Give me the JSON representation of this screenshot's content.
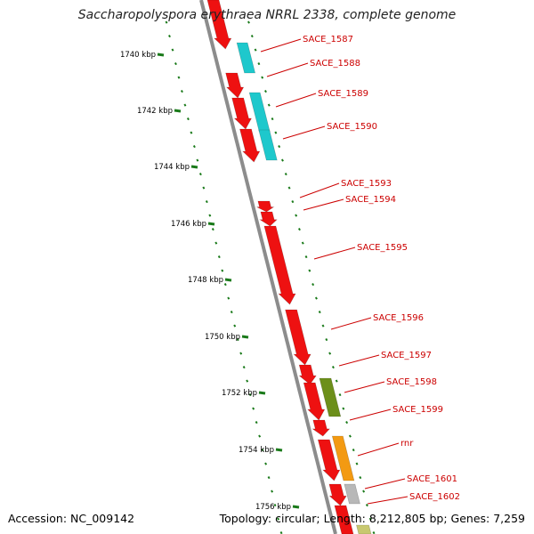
{
  "header": {
    "title": "Saccharopolyspora erythraea NRRL 2338, complete genome"
  },
  "footer": {
    "accession": "Accession: NC_009142",
    "summary": "Topology: circular; Length: 8,212,805 bp; Genes: 7,259"
  },
  "colors": {
    "forward_cds": "#ee1111",
    "reverse_cds": "#1ec8cc",
    "other_a": "#6c8f1a",
    "other_b": "#f39a12",
    "other_c": "#b8b8b8",
    "backbone": "#8c8c8c",
    "ticks": "#1a7a1a",
    "label": "#cc0000"
  },
  "scale": {
    "unit": "kbp",
    "ticks": [
      {
        "value": 1740,
        "label": "1740 kbp"
      },
      {
        "value": 1742,
        "label": "1742 kbp"
      },
      {
        "value": 1744,
        "label": "1744 kbp"
      },
      {
        "value": 1746,
        "label": "1746 kbp"
      },
      {
        "value": 1748,
        "label": "1748 kbp"
      },
      {
        "value": 1750,
        "label": "1750 kbp"
      },
      {
        "value": 1752,
        "label": "1752 kbp"
      },
      {
        "value": 1754,
        "label": "1754 kbp"
      },
      {
        "value": 1756,
        "label": "1756 kbp"
      }
    ]
  },
  "genes": [
    {
      "name": "SACE_1587"
    },
    {
      "name": "SACE_1588"
    },
    {
      "name": "SACE_1589"
    },
    {
      "name": "SACE_1590"
    },
    {
      "name": "SACE_1593"
    },
    {
      "name": "SACE_1594"
    },
    {
      "name": "SACE_1595"
    },
    {
      "name": "SACE_1596"
    },
    {
      "name": "SACE_1597"
    },
    {
      "name": "SACE_1598"
    },
    {
      "name": "SACE_1599"
    },
    {
      "name": "rnr"
    },
    {
      "name": "SACE_1601"
    },
    {
      "name": "SACE_1602"
    }
  ]
}
